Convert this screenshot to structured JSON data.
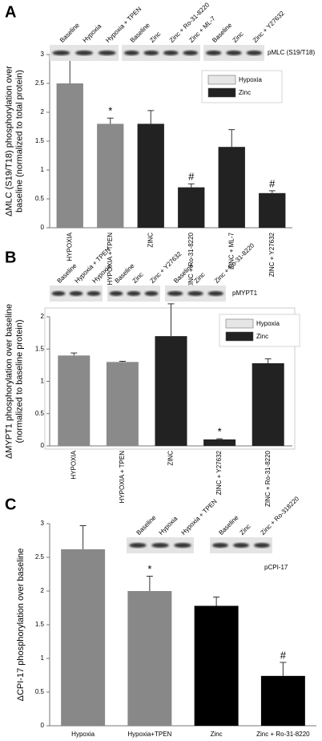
{
  "chart_data": [
    {
      "type": "bar",
      "panel": "A",
      "y_label": [
        "ΔMLC (S19/T18) phosphorylation over",
        "baseline (normalized to total protein)"
      ],
      "categories": [
        "HYPOXIA",
        "HYPOXIA + TPEN",
        "ZINC",
        "ZINC + Ro-31-8220",
        "ZINC + ML-7",
        "ZINC + Y27632"
      ],
      "values": [
        2.5,
        1.8,
        1.8,
        0.7,
        1.4,
        0.6
      ],
      "errors": [
        0.4,
        0.1,
        0.23,
        0.06,
        0.3,
        0.04
      ],
      "colors": [
        "#8a8a8a",
        "#8a8a8a",
        "#222222",
        "#222222",
        "#222222",
        "#222222"
      ],
      "markers": [
        null,
        "*",
        null,
        "#",
        null,
        "#"
      ],
      "ylim": [
        0,
        3
      ],
      "yticks": [
        0,
        0.5,
        1,
        1.5,
        2,
        2.5,
        3
      ],
      "legend": [
        {
          "name": "Hypoxia",
          "color": "#e6e6e6"
        },
        {
          "name": "Zinc",
          "color": "#222222"
        }
      ],
      "blot": {
        "label": "pMLC (S19/T18)",
        "strips": [
          [
            "Baseline",
            "Hypoxia",
            "Hypoxia + TPEN"
          ],
          [
            "Baseline",
            "Zinc",
            "Zinc + Ro-31-8220",
            "Zinc + ML-7"
          ],
          [
            "Baseline",
            "Zinc",
            "Zinc + Y27632"
          ]
        ]
      }
    },
    {
      "type": "bar",
      "panel": "B",
      "y_label": [
        "ΔMYPT1 phosphorylation over baseline",
        "(normalized to baseline protein)"
      ],
      "categories": [
        "HYPOXIA",
        "HYPOXIA + TPEN",
        "ZINC",
        "ZINC + Y27632",
        "ZINC + Ro-31-8220"
      ],
      "values": [
        1.4,
        1.3,
        1.7,
        0.1,
        1.28
      ],
      "errors": [
        0.04,
        0.01,
        0.5,
        0.01,
        0.07
      ],
      "colors": [
        "#8a8a8a",
        "#8a8a8a",
        "#222222",
        "#222222",
        "#222222"
      ],
      "markers": [
        null,
        null,
        null,
        "*",
        null
      ],
      "ylim": [
        0,
        2
      ],
      "yticks": [
        0,
        0.5,
        1,
        1.5,
        2
      ],
      "legend": [
        {
          "name": "Hypoxia",
          "color": "#e6e6e6"
        },
        {
          "name": "Zinc",
          "color": "#222222"
        }
      ],
      "blot": {
        "label": "pMYPT1",
        "strips": [
          [
            "Baseline",
            "Hypoxia + TPEN",
            "Hypoxia"
          ],
          [
            "Baseline",
            "Zinc",
            "Zinc + Y27632"
          ],
          [
            "Baseline",
            "Zinc",
            "Zinc + Ro-31-8220"
          ]
        ]
      }
    },
    {
      "type": "bar",
      "panel": "C",
      "y_label": [
        "ΔCPI-17 phosphorylation over baseline"
      ],
      "categories": [
        "Hypoxia",
        "Hypoxia+TPEN",
        "Zinc",
        "Zinc + Ro-31-8220"
      ],
      "values": [
        2.62,
        2.0,
        1.78,
        0.74
      ],
      "errors": [
        0.35,
        0.22,
        0.13,
        0.2
      ],
      "colors": [
        "#888888",
        "#888888",
        "#000000",
        "#000000"
      ],
      "markers": [
        null,
        "*",
        null,
        "#"
      ],
      "ylim": [
        0,
        3
      ],
      "yticks": [
        0,
        0.5,
        1,
        1.5,
        2,
        2.5,
        3
      ],
      "blot": {
        "label": "pCPI-17",
        "strips": [
          [
            "Baseline",
            "Hypoxia",
            "Hypoxia + TPEN"
          ],
          [
            "Baseline",
            "Zinc",
            "Zinc + Ro-318220"
          ]
        ]
      }
    }
  ]
}
